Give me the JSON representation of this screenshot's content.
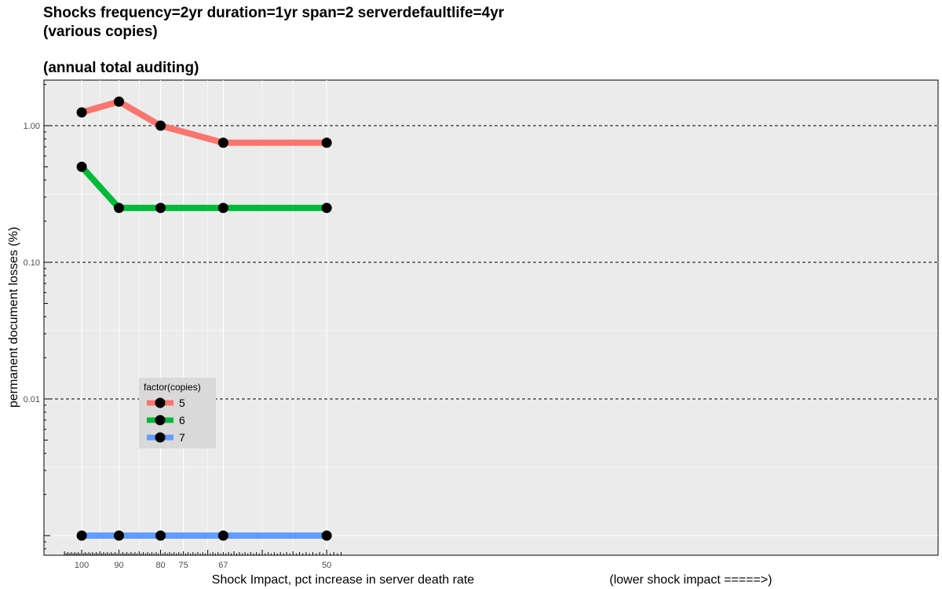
{
  "title_line1": "Shocks frequency=2yr duration=1yr span=2 serverdefaultlife=4yr",
  "title_line2": "(various copies)",
  "subtitle": "(annual total auditing)",
  "chart_data": {
    "type": "line",
    "x": [
      "100",
      "90",
      "80",
      "67",
      "50"
    ],
    "x_tick_labels": [
      "100",
      "90",
      "80",
      "75",
      "67",
      "50"
    ],
    "y_scale": "log10",
    "y_tick_labels": [
      "1.00",
      "0.10",
      "0.01"
    ],
    "xlabel": "Shock Impact, pct increase in server death rate",
    "xlabel_note": "(lower shock impact =====>)",
    "ylabel": "permanent document losses (%)",
    "legend_title": "factor(copies)",
    "legend_position": "inside-bottom-left",
    "series": [
      {
        "name": "5",
        "color": "#F8766D",
        "values": [
          1.25,
          1.5,
          1.0,
          0.75,
          0.75
        ]
      },
      {
        "name": "6",
        "color": "#00BA38",
        "values": [
          0.5,
          0.25,
          0.25,
          0.25,
          0.25
        ]
      },
      {
        "name": "7",
        "color": "#619CFF",
        "values": [
          0.001,
          0.001,
          0.001,
          0.001,
          0.001
        ]
      }
    ],
    "reference_lines": [
      1.0,
      0.1,
      0.01
    ],
    "grid": true
  }
}
